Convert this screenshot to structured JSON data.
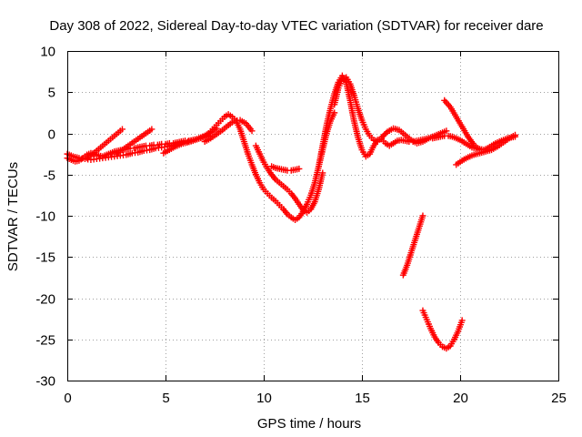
{
  "chart_data": {
    "type": "scatter",
    "title": "Day 308 of 2022, Sidereal Day-to-day VTEC variation (SDTVAR) for receiver dare",
    "xlabel": "GPS time / hours",
    "ylabel": "SDTVAR / TECUs",
    "xlim": [
      0,
      25
    ],
    "ylim": [
      -30,
      10
    ],
    "x_ticks": [
      0,
      5,
      10,
      15,
      20,
      25
    ],
    "y_ticks": [
      -30,
      -25,
      -20,
      -15,
      -10,
      -5,
      0,
      5,
      10
    ],
    "grid": true,
    "marker": "plus",
    "color": "#ff0000",
    "series": [
      {
        "x": [
          0.0,
          0.2,
          0.4,
          0.6,
          0.8,
          1.0,
          1.2,
          1.4,
          1.6,
          1.8,
          2.0,
          2.2,
          2.4,
          2.6,
          2.8,
          3.0,
          3.2,
          3.4,
          3.6,
          3.8,
          4.0,
          4.2,
          4.4,
          4.6,
          4.8,
          5.0,
          5.2,
          5.4,
          5.6,
          5.8,
          6.0,
          6.2,
          6.4,
          6.6,
          6.8,
          7.0,
          7.2,
          7.4,
          7.6,
          7.8,
          8.0,
          8.2,
          8.4,
          8.6,
          8.8,
          9.0,
          9.2,
          9.4,
          9.6,
          9.8,
          10.0,
          10.2,
          10.4,
          10.6,
          10.8,
          11.0,
          11.2,
          11.4,
          11.6,
          11.8,
          12.0,
          12.2,
          12.4,
          12.6,
          12.8,
          13.0,
          13.2,
          13.4,
          13.6,
          13.8,
          14.0,
          14.2,
          14.4,
          14.6,
          14.8,
          15.0,
          15.2,
          15.4,
          15.6,
          15.8,
          16.0,
          16.2,
          16.4,
          16.6,
          16.8,
          17.0,
          17.2,
          17.4,
          17.6,
          17.8,
          18.0,
          18.2,
          18.4,
          18.6,
          18.8,
          19.0,
          19.2,
          19.4,
          19.6,
          19.8,
          20.0,
          20.2,
          20.4,
          20.6,
          20.8,
          21.0,
          21.2,
          21.4,
          21.6,
          21.8,
          22.0,
          22.2,
          22.4,
          22.6,
          22.8
        ],
        "y": [
          -3.0,
          -3.2,
          -3.4,
          -3.3,
          -3.0,
          -2.6,
          -2.4,
          -2.5,
          -2.7,
          -2.8,
          -2.6,
          -2.4,
          -2.2,
          -2.1,
          -2.0,
          -1.9,
          -1.8,
          -1.8,
          -1.7,
          -1.6,
          -1.5,
          -1.5,
          -1.4,
          -1.4,
          -1.3,
          -1.3,
          -1.2,
          -1.2,
          -1.1,
          -1.0,
          -0.9,
          -0.9,
          -0.8,
          -0.7,
          -0.5,
          -0.3,
          0.0,
          0.5,
          1.0,
          1.5,
          2.0,
          2.3,
          2.0,
          1.5,
          0.5,
          -1.0,
          -2.5,
          -3.8,
          -5.0,
          -6.0,
          -6.8,
          -7.3,
          -7.8,
          -8.2,
          -8.7,
          -9.2,
          -9.8,
          -10.2,
          -10.5,
          -10.2,
          -9.5,
          -8.6,
          -7.5,
          -6.0,
          -4.0,
          -1.5,
          1.0,
          3.0,
          4.8,
          6.2,
          7.0,
          6.2,
          4.0,
          1.5,
          -0.5,
          -2.0,
          -2.8,
          -2.5,
          -1.5,
          -0.8,
          -0.7,
          -1.2,
          -1.5,
          -1.2,
          -0.9,
          -0.8,
          -0.9,
          -1.0,
          -1.0,
          -0.9,
          -0.8,
          -0.7,
          -0.6,
          -0.6,
          -0.5,
          -0.4,
          -0.3,
          -0.3,
          -0.4,
          -0.6,
          -0.8,
          -1.1,
          -1.4,
          -1.7,
          -1.8,
          -1.9,
          -2.0,
          -1.8,
          -1.5,
          -1.2,
          -1.0,
          -0.8,
          -0.6,
          -0.5,
          -0.4
        ]
      },
      {
        "x": [
          0.0,
          0.3,
          0.6,
          0.9,
          1.2,
          1.5,
          1.8,
          2.1,
          2.4,
          2.7,
          3.0,
          3.3,
          3.6,
          3.9,
          4.2,
          4.5,
          4.8,
          5.1,
          5.4,
          5.7,
          6.0,
          6.3,
          6.6,
          6.9,
          7.2
        ],
        "y": [
          -2.5,
          -2.8,
          -3.0,
          -3.1,
          -3.2,
          -3.1,
          -3.0,
          -2.9,
          -2.8,
          -2.7,
          -2.6,
          -2.4,
          -2.3,
          -2.1,
          -2.0,
          -1.8,
          -1.7,
          -1.6,
          -1.4,
          -1.2,
          -1.0,
          -0.9,
          -0.7,
          -0.5,
          -0.3
        ]
      },
      {
        "x": [
          1.0,
          1.3,
          1.6,
          1.9,
          2.2,
          2.5,
          2.8
        ],
        "y": [
          -3.0,
          -2.5,
          -1.9,
          -1.3,
          -0.7,
          -0.1,
          0.5
        ]
      },
      {
        "x": [
          2.5,
          2.8,
          3.1,
          3.4,
          3.7,
          4.0,
          4.3
        ],
        "y": [
          -2.5,
          -2.0,
          -1.5,
          -1.0,
          -0.5,
          0.0,
          0.5
        ]
      },
      {
        "x": [
          4.9,
          5.2,
          5.5,
          5.8,
          6.1,
          6.4,
          6.7,
          7.0,
          7.3,
          7.6
        ],
        "y": [
          -2.4,
          -2.0,
          -1.6,
          -1.3,
          -1.1,
          -0.9,
          -0.6,
          -0.3,
          0.1,
          0.6
        ]
      },
      {
        "x": [
          7.0,
          7.3,
          7.6,
          7.9,
          8.2,
          8.5,
          8.8,
          9.1,
          9.4
        ],
        "y": [
          -1.0,
          -0.6,
          -0.1,
          0.4,
          1.0,
          1.5,
          1.6,
          1.2,
          0.3
        ]
      },
      {
        "x": [
          9.6,
          9.8,
          10.0,
          10.2,
          10.4,
          10.6,
          10.8,
          11.0,
          11.2,
          11.4,
          11.6,
          11.8,
          12.0,
          12.2,
          12.4,
          12.6,
          12.8,
          13.0
        ],
        "y": [
          -1.5,
          -2.5,
          -3.5,
          -4.3,
          -5.0,
          -5.6,
          -6.0,
          -6.4,
          -6.8,
          -7.3,
          -7.9,
          -8.6,
          -9.3,
          -9.6,
          -9.2,
          -8.3,
          -6.8,
          -4.8
        ]
      },
      {
        "x": [
          10.4,
          10.6,
          10.8,
          11.0,
          11.2,
          11.4,
          11.6,
          11.8
        ],
        "y": [
          -4.0,
          -4.2,
          -4.3,
          -4.4,
          -4.5,
          -4.5,
          -4.4,
          -4.3
        ]
      },
      {
        "x": [
          13.6,
          13.8,
          14.0,
          14.2,
          14.4,
          14.6,
          14.8,
          15.0,
          15.2,
          15.4,
          15.6,
          15.8
        ],
        "y": [
          3.5,
          5.5,
          6.6,
          6.8,
          6.0,
          4.6,
          3.0,
          1.6,
          0.5,
          -0.3,
          -0.8,
          -1.0
        ]
      },
      {
        "x": [
          12.8,
          13.0,
          13.2,
          13.4,
          13.6
        ],
        "y": [
          -4.0,
          -2.0,
          0.0,
          1.5,
          2.5
        ]
      },
      {
        "x": [
          17.1,
          17.3,
          17.5,
          17.7,
          17.9,
          18.1
        ],
        "y": [
          -17.2,
          -16.0,
          -14.5,
          -13.0,
          -11.5,
          -10.0
        ]
      },
      {
        "x": [
          18.1,
          18.3,
          18.5,
          18.7,
          18.9,
          19.1,
          19.3,
          19.5,
          19.7,
          19.9,
          20.1
        ],
        "y": [
          -21.5,
          -22.6,
          -23.7,
          -24.7,
          -25.4,
          -25.9,
          -26.1,
          -25.8,
          -25.0,
          -24.0,
          -22.7
        ]
      },
      {
        "x": [
          19.2,
          19.5,
          19.8,
          20.1,
          20.4,
          20.7,
          21.0
        ],
        "y": [
          4.0,
          3.2,
          2.0,
          0.8,
          -0.4,
          -1.4,
          -2.0
        ]
      },
      {
        "x": [
          19.8,
          20.1,
          20.4,
          20.7,
          21.0,
          21.3,
          21.6,
          21.9,
          22.2,
          22.5,
          22.8
        ],
        "y": [
          -3.8,
          -3.3,
          -2.9,
          -2.6,
          -2.4,
          -2.2,
          -2.0,
          -1.6,
          -1.1,
          -0.6,
          -0.2
        ]
      },
      {
        "x": [
          16.0,
          16.3,
          16.6,
          16.9,
          17.2,
          17.5,
          17.8,
          18.1,
          18.4,
          18.7,
          19.0,
          19.3
        ],
        "y": [
          -0.5,
          0.2,
          0.6,
          0.4,
          -0.2,
          -0.8,
          -1.2,
          -1.0,
          -0.6,
          -0.3,
          0.0,
          0.3
        ]
      }
    ]
  }
}
